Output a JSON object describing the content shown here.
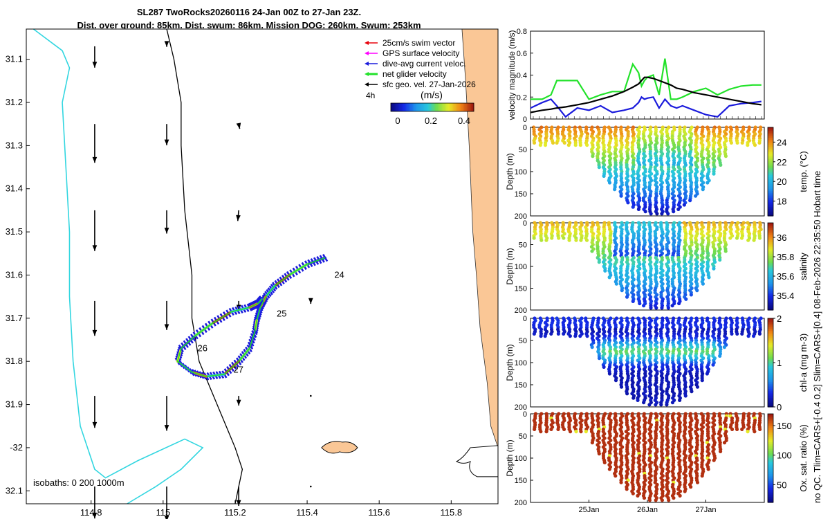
{
  "title_line1": "SL287 TwoRocks20260116 24-Jan 00Z to 27-Jan 23Z.",
  "title_line2": "Dist. over ground: 85km. Dist. swum: 86km. Mission DOG: 260km. Swum: 253km",
  "side_note": "no QC. Tlim=CARS+[-0.4 0.2] Slim=CARS+[0.4] 08-Feb-2026 22:35:50 Hobart time",
  "colors": {
    "land": "#fac796",
    "coast": "#000000",
    "isobath_200": "#000000",
    "isobath_1000": "#32d6e0",
    "swim_vector": "#e8000b",
    "gps_velocity": "#ff00ff",
    "dive_current": "#1a1adc",
    "net_velocity": "#22e22a",
    "sfc_geo": "#000000"
  },
  "chart_data": [
    {
      "type": "map",
      "xlabel": "",
      "ylabel": "",
      "xlim": [
        114.62,
        115.93
      ],
      "ylim": [
        -32.13,
        -31.03
      ],
      "xticks": [
        114.8,
        115,
        115.2,
        115.4,
        115.6,
        115.8
      ],
      "xtick_labels": [
        "114.8",
        "115",
        "115.2",
        "115.4",
        "115.6",
        "115.8"
      ],
      "yticks": [
        -31.1,
        -31.2,
        -31.3,
        -31.4,
        -31.5,
        -31.6,
        -31.7,
        -31.8,
        -31.9,
        -32,
        -32.1
      ],
      "ytick_labels": [
        "31.1",
        "31.2",
        "31.3",
        "31.4",
        "31.5",
        "31.6",
        "31.7",
        "31.8",
        "31.9",
        "-32",
        "32.1"
      ],
      "legend": [
        "25cm/s swim vector",
        "GPS surface velocity",
        "dive-avg current veloc.",
        "net glider velocity",
        "sfc geo. vel. 27-Jan-2026"
      ],
      "legend_position": "top-right",
      "time_step_label": "4h",
      "colorbar_label": "(m/s)",
      "colorbar_range": [
        0,
        0.5
      ],
      "colorbar_ticks": [
        "0",
        "0.2",
        "0.4"
      ],
      "isobaths_label": "isobaths: 0   200  1000m",
      "day_labels": [
        {
          "label": "24",
          "lon": 115.46,
          "lat": -31.6
        },
        {
          "label": "25",
          "lon": 115.3,
          "lat": -31.69
        },
        {
          "label": "26",
          "lon": 115.08,
          "lat": -31.77
        },
        {
          "label": "27",
          "lon": 115.18,
          "lat": -31.82
        }
      ],
      "track": [
        [
          115.45,
          -31.56
        ],
        [
          115.4,
          -31.575
        ],
        [
          115.35,
          -31.6
        ],
        [
          115.31,
          -31.625
        ],
        [
          115.285,
          -31.65
        ],
        [
          115.27,
          -31.675
        ],
        [
          115.26,
          -31.705
        ],
        [
          115.255,
          -31.73
        ],
        [
          115.24,
          -31.77
        ],
        [
          115.21,
          -31.8
        ],
        [
          115.17,
          -31.83
        ],
        [
          115.12,
          -31.835
        ],
        [
          115.08,
          -31.825
        ],
        [
          115.04,
          -31.8
        ],
        [
          115.05,
          -31.77
        ],
        [
          115.09,
          -31.74
        ],
        [
          115.14,
          -31.71
        ],
        [
          115.19,
          -31.685
        ],
        [
          115.24,
          -31.675
        ],
        [
          115.265,
          -31.665
        ],
        [
          115.275,
          -31.655
        ]
      ],
      "track_speed_colors": [
        "#1a1adc",
        "#2448f0",
        "#35b7e6",
        "#7ee06a",
        "#f1f221",
        "#f47a16",
        "#b8200f"
      ],
      "current_arrows": [
        {
          "lon": 114.81,
          "lat": -31.07,
          "u": 0.0,
          "v": -0.22
        },
        {
          "lon": 115.01,
          "lat": -31.06,
          "u": 0.0,
          "v": -0.05
        },
        {
          "lon": 114.81,
          "lat": -31.25,
          "u": 0.0,
          "v": -0.4
        },
        {
          "lon": 115.01,
          "lat": -31.25,
          "u": 0.0,
          "v": -0.22
        },
        {
          "lon": 115.21,
          "lat": -31.25,
          "u": 0.01,
          "v": -0.05
        },
        {
          "lon": 114.81,
          "lat": -31.45,
          "u": 0.0,
          "v": -0.42
        },
        {
          "lon": 115.01,
          "lat": -31.45,
          "u": 0.0,
          "v": -0.24
        },
        {
          "lon": 115.21,
          "lat": -31.45,
          "u": -0.01,
          "v": -0.11
        },
        {
          "lon": 114.81,
          "lat": -31.66,
          "u": 0.0,
          "v": -0.36
        },
        {
          "lon": 115.01,
          "lat": -31.66,
          "u": 0.0,
          "v": -0.3
        },
        {
          "lon": 115.21,
          "lat": -31.66,
          "u": 0.0,
          "v": -0.1
        },
        {
          "lon": 115.41,
          "lat": -31.66,
          "u": 0.0,
          "v": -0.03
        },
        {
          "lon": 114.81,
          "lat": -31.88,
          "u": 0.0,
          "v": -0.33
        },
        {
          "lon": 115.01,
          "lat": -31.88,
          "u": 0.0,
          "v": -0.36
        },
        {
          "lon": 115.21,
          "lat": -31.88,
          "u": 0.0,
          "v": -0.1
        },
        {
          "lon": 115.41,
          "lat": -31.88,
          "u": 0.0,
          "v": 0.0
        },
        {
          "lon": 114.81,
          "lat": -32.09,
          "u": 0.0,
          "v": -0.33
        },
        {
          "lon": 115.01,
          "lat": -32.09,
          "u": 0.0,
          "v": -0.36
        },
        {
          "lon": 115.21,
          "lat": -32.09,
          "u": 0.0,
          "v": -0.2
        },
        {
          "lon": 115.41,
          "lat": -32.09,
          "u": 0.0,
          "v": 0.0
        }
      ],
      "coastline": [
        [
          115.83,
          -31.03
        ],
        [
          115.84,
          -31.15
        ],
        [
          115.85,
          -31.3
        ],
        [
          115.86,
          -31.5
        ],
        [
          115.87,
          -31.6
        ],
        [
          115.88,
          -31.72
        ],
        [
          115.9,
          -31.85
        ],
        [
          115.91,
          -31.95
        ],
        [
          115.93,
          -32.0
        ]
      ],
      "isobath_200m": [
        [
          115.01,
          -31.03
        ],
        [
          115.03,
          -31.1
        ],
        [
          115.05,
          -31.2
        ],
        [
          115.05,
          -31.3
        ],
        [
          115.06,
          -31.45
        ],
        [
          115.08,
          -31.6
        ],
        [
          115.08,
          -31.7
        ],
        [
          115.1,
          -31.8
        ],
        [
          115.15,
          -31.9
        ],
        [
          115.2,
          -32.0
        ],
        [
          115.22,
          -32.05
        ],
        [
          115.2,
          -32.13
        ]
      ],
      "isobath_1000m": [
        [
          114.64,
          -31.03
        ],
        [
          114.72,
          -31.08
        ],
        [
          114.74,
          -31.12
        ],
        [
          114.72,
          -31.2
        ],
        [
          114.73,
          -31.35
        ],
        [
          114.74,
          -31.5
        ],
        [
          114.74,
          -31.65
        ],
        [
          114.75,
          -31.8
        ],
        [
          114.77,
          -31.95
        ],
        [
          114.81,
          -32.05
        ],
        [
          114.84,
          -32.07
        ],
        [
          114.93,
          -32.03
        ],
        [
          115.06,
          -31.98
        ],
        [
          115.11,
          -32.0
        ],
        [
          115.05,
          -32.05
        ],
        [
          114.98,
          -32.09
        ],
        [
          114.9,
          -32.13
        ]
      ]
    },
    {
      "type": "line",
      "ylabel": "velocity magnitude (m/s)",
      "ylim": [
        0,
        0.8
      ],
      "yticks": [
        "0",
        "0.2",
        "0.4",
        "0.6",
        "0.8"
      ],
      "x_range_days": [
        0,
        4
      ],
      "x": [
        0.0,
        0.2,
        0.35,
        0.45,
        0.6,
        0.8,
        1.0,
        1.2,
        1.4,
        1.6,
        1.75,
        1.85,
        1.9,
        1.95,
        2.0,
        2.1,
        2.2,
        2.3,
        2.4,
        2.5,
        2.6,
        2.8,
        3.0,
        3.2,
        3.4,
        3.6,
        3.8,
        3.95
      ],
      "series": [
        {
          "name": "net glider velocity",
          "color": "#22e22a",
          "values": [
            0.18,
            0.18,
            0.22,
            0.35,
            0.35,
            0.35,
            0.18,
            0.22,
            0.25,
            0.25,
            0.5,
            0.42,
            0.3,
            0.35,
            0.38,
            0.4,
            0.22,
            0.55,
            0.18,
            0.18,
            0.2,
            0.25,
            0.28,
            0.22,
            0.27,
            0.3,
            0.31,
            0.31
          ]
        },
        {
          "name": "dive-avg current veloc.",
          "color": "#1a1adc",
          "values": [
            0.1,
            0.15,
            0.18,
            0.12,
            0.02,
            0.1,
            0.08,
            0.12,
            0.06,
            0.08,
            0.1,
            0.15,
            0.2,
            0.18,
            0.19,
            0.2,
            0.1,
            0.18,
            0.12,
            0.1,
            0.12,
            0.08,
            0.04,
            0.02,
            0.12,
            0.14,
            0.15,
            0.16
          ]
        },
        {
          "name": "sfc geo. vel.",
          "color": "#000000",
          "values": [
            0.06,
            0.08,
            0.09,
            0.1,
            0.11,
            0.13,
            0.15,
            0.18,
            0.21,
            0.25,
            0.29,
            0.32,
            0.35,
            0.38,
            0.38,
            0.37,
            0.35,
            0.33,
            0.31,
            0.28,
            0.27,
            0.24,
            0.22,
            0.2,
            0.18,
            0.16,
            0.14,
            0.13
          ]
        }
      ]
    },
    {
      "type": "scatter-section",
      "field": "temp",
      "colorbar_label": "temp. (°C)",
      "ylabel": "Depth (m)",
      "ylim": [
        0,
        200
      ],
      "yticks": [
        "0",
        "50",
        "100",
        "150",
        "200"
      ],
      "clim": [
        16.5,
        25.5
      ],
      "cbar_ticks": [
        "24",
        "22",
        "20",
        "18"
      ],
      "cbar_tick_values": [
        24,
        22,
        20,
        18
      ]
    },
    {
      "type": "scatter-section",
      "field": "salinity",
      "colorbar_label": "salinity",
      "ylabel": "Depth (m)",
      "ylim": [
        0,
        200
      ],
      "yticks": [
        "0",
        "50",
        "100",
        "150",
        "200"
      ],
      "clim": [
        35.25,
        36.15
      ],
      "cbar_ticks": [
        "36",
        "35.8",
        "35.6",
        "35.4"
      ],
      "cbar_tick_values": [
        36,
        35.8,
        35.6,
        35.4
      ]
    },
    {
      "type": "scatter-section",
      "field": "chl-a",
      "colorbar_label": "chl-a (mg m-3)",
      "ylabel": "Depth (m)",
      "ylim": [
        0,
        200
      ],
      "yticks": [
        "0",
        "50",
        "100",
        "150",
        "200"
      ],
      "clim": [
        0,
        2
      ],
      "cbar_ticks": [
        "2",
        "1",
        "0"
      ],
      "cbar_tick_values": [
        2,
        1,
        0
      ]
    },
    {
      "type": "scatter-section",
      "field": "oxygen",
      "colorbar_label": "Ox. sat. ratio (%)",
      "ylabel": "Depth (m)",
      "ylim": [
        0,
        200
      ],
      "yticks": [
        "0",
        "50",
        "100",
        "150",
        "200"
      ],
      "clim": [
        20,
        170
      ],
      "cbar_ticks": [
        "150",
        "100",
        "50"
      ],
      "cbar_tick_values": [
        150,
        100,
        50
      ],
      "xticks": [
        "25Jan",
        "26Jan",
        "27Jan"
      ],
      "xtick_days": [
        1,
        2,
        3
      ]
    }
  ]
}
